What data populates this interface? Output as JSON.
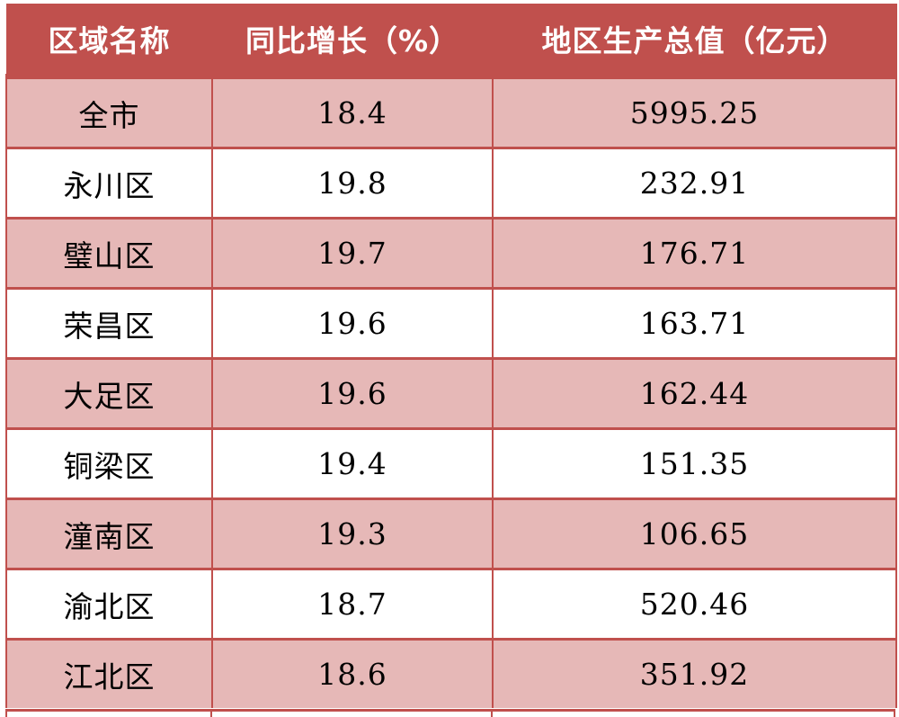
{
  "table": {
    "headers": [
      "区域名称",
      "同比增长（%）",
      "地区生产总值（亿元）"
    ],
    "rows": [
      {
        "name": "全市",
        "growth": "18.4",
        "gdp": "5995.25"
      },
      {
        "name": "永川区",
        "growth": "19.8",
        "gdp": "232.91"
      },
      {
        "name": "璧山区",
        "growth": "19.7",
        "gdp": "176.71"
      },
      {
        "name": "荣昌区",
        "growth": "19.6",
        "gdp": "163.71"
      },
      {
        "name": "大足区",
        "growth": "19.6",
        "gdp": "162.44"
      },
      {
        "name": "铜梁区",
        "growth": "19.4",
        "gdp": "151.35"
      },
      {
        "name": "潼南区",
        "growth": "19.3",
        "gdp": "106.65"
      },
      {
        "name": "渝北区",
        "growth": "18.7",
        "gdp": "520.46"
      },
      {
        "name": "江北区",
        "growth": "18.6",
        "gdp": "351.92"
      }
    ]
  },
  "colors": {
    "header_bg": "#c0504d",
    "header_text": "#ffffff",
    "row_shade": "#e6b8b7",
    "row_plain": "#ffffff",
    "grid": "#c0504d"
  }
}
